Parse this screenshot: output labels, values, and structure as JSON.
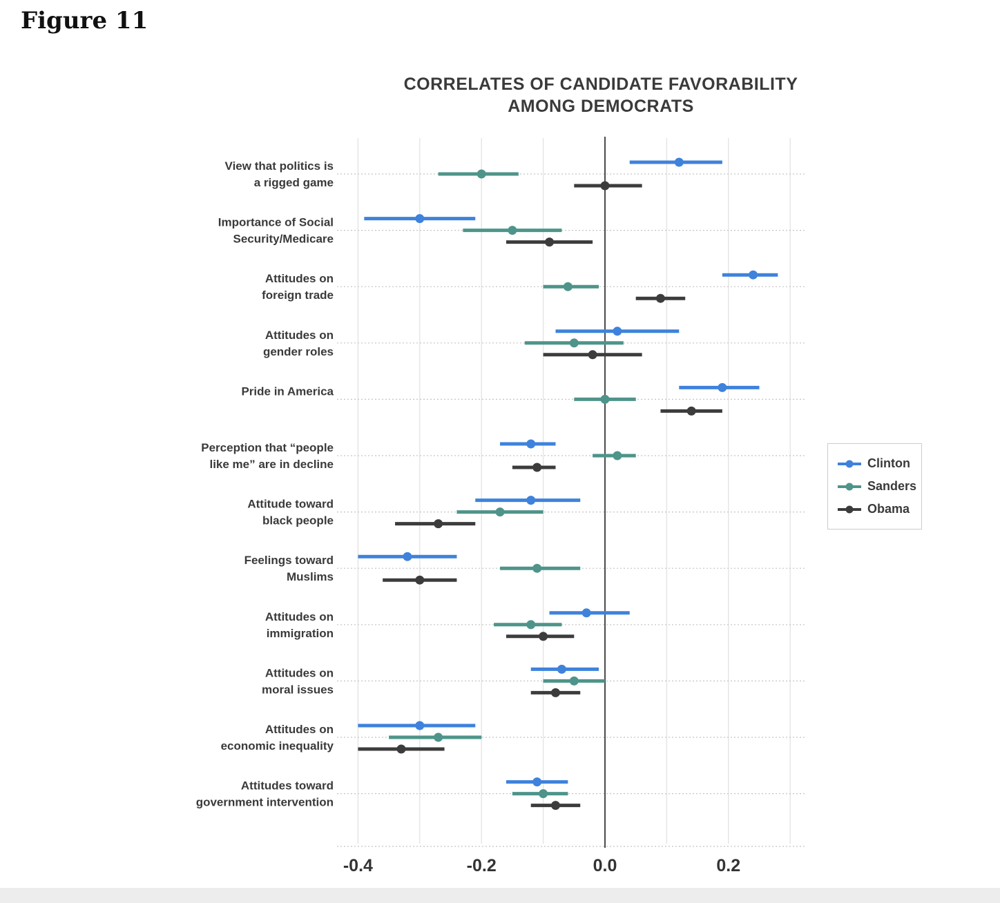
{
  "figure_label": "Figure 11",
  "chart_data": {
    "type": "dot-interval",
    "title_line1": "CORRELATES OF CANDIDATE FAVORABILITY",
    "title_line2": "AMONG DEMOCRATS",
    "x_axis": {
      "ticks": [
        -0.4,
        -0.2,
        0.0,
        0.2
      ],
      "tick_labels": [
        "-0.4",
        "-0.2",
        "0.0",
        "0.2"
      ],
      "gridline_step": 0.1,
      "range": [
        -0.43,
        0.32
      ],
      "zero_line": true,
      "grid": true
    },
    "legend": {
      "position": "right",
      "entries": [
        "Clinton",
        "Sanders",
        "Obama"
      ]
    },
    "colors": {
      "clinton": "#3e82dc",
      "sanders": "#4e948a",
      "obama": "#3c3c3c",
      "gridline": "#e2e2e2",
      "zero_line": "#4b4b4b",
      "guide": "#c4c4c4",
      "text": "#3a3a3a"
    },
    "categories": [
      [
        "View that politics is",
        "a rigged game"
      ],
      [
        "Importance of Social",
        "Security/Medicare"
      ],
      [
        "Attitudes on",
        "foreign trade"
      ],
      [
        "Attitudes on",
        "gender roles"
      ],
      [
        "Pride in America"
      ],
      [
        "Perception that “people",
        "like me” are in decline"
      ],
      [
        "Attitude toward",
        "black people"
      ],
      [
        "Feelings toward",
        "Muslims"
      ],
      [
        "Attitudes on",
        "immigration"
      ],
      [
        "Attitudes on",
        "moral issues"
      ],
      [
        "Attitudes on",
        "economic inequality"
      ],
      [
        "Attitudes toward",
        "government intervention"
      ]
    ],
    "series": [
      {
        "name": "Clinton",
        "color": "#3e82dc",
        "points": [
          {
            "v": 0.12,
            "lo": 0.04,
            "hi": 0.19
          },
          {
            "v": -0.3,
            "lo": -0.39,
            "hi": -0.21
          },
          {
            "v": 0.24,
            "lo": 0.19,
            "hi": 0.28
          },
          {
            "v": 0.02,
            "lo": -0.08,
            "hi": 0.12
          },
          {
            "v": 0.19,
            "lo": 0.12,
            "hi": 0.25
          },
          {
            "v": -0.12,
            "lo": -0.17,
            "hi": -0.08
          },
          {
            "v": -0.12,
            "lo": -0.21,
            "hi": -0.04
          },
          {
            "v": -0.32,
            "lo": -0.4,
            "hi": -0.24
          },
          {
            "v": -0.03,
            "lo": -0.09,
            "hi": 0.04
          },
          {
            "v": -0.07,
            "lo": -0.12,
            "hi": -0.01
          },
          {
            "v": -0.3,
            "lo": -0.4,
            "hi": -0.21
          },
          {
            "v": -0.11,
            "lo": -0.16,
            "hi": -0.06
          }
        ]
      },
      {
        "name": "Sanders",
        "color": "#4e948a",
        "points": [
          {
            "v": -0.2,
            "lo": -0.27,
            "hi": -0.14
          },
          {
            "v": -0.15,
            "lo": -0.23,
            "hi": -0.07
          },
          {
            "v": -0.06,
            "lo": -0.1,
            "hi": -0.01
          },
          {
            "v": -0.05,
            "lo": -0.13,
            "hi": 0.03
          },
          {
            "v": 0.0,
            "lo": -0.05,
            "hi": 0.05
          },
          {
            "v": 0.02,
            "lo": -0.02,
            "hi": 0.05
          },
          {
            "v": -0.17,
            "lo": -0.24,
            "hi": -0.1
          },
          {
            "v": -0.11,
            "lo": -0.17,
            "hi": -0.04
          },
          {
            "v": -0.12,
            "lo": -0.18,
            "hi": -0.07
          },
          {
            "v": -0.05,
            "lo": -0.1,
            "hi": 0.0
          },
          {
            "v": -0.27,
            "lo": -0.35,
            "hi": -0.2
          },
          {
            "v": -0.1,
            "lo": -0.15,
            "hi": -0.06
          }
        ]
      },
      {
        "name": "Obama",
        "color": "#3c3c3c",
        "points": [
          {
            "v": 0.0,
            "lo": -0.05,
            "hi": 0.06
          },
          {
            "v": -0.09,
            "lo": -0.16,
            "hi": -0.02
          },
          {
            "v": 0.09,
            "lo": 0.05,
            "hi": 0.13
          },
          {
            "v": -0.02,
            "lo": -0.1,
            "hi": 0.06
          },
          {
            "v": 0.14,
            "lo": 0.09,
            "hi": 0.19
          },
          {
            "v": -0.11,
            "lo": -0.15,
            "hi": -0.08
          },
          {
            "v": -0.27,
            "lo": -0.34,
            "hi": -0.21
          },
          {
            "v": -0.3,
            "lo": -0.36,
            "hi": -0.24
          },
          {
            "v": -0.1,
            "lo": -0.16,
            "hi": -0.05
          },
          {
            "v": -0.08,
            "lo": -0.12,
            "hi": -0.04
          },
          {
            "v": -0.33,
            "lo": -0.4,
            "hi": -0.26
          },
          {
            "v": -0.08,
            "lo": -0.12,
            "hi": -0.04
          }
        ]
      }
    ]
  }
}
